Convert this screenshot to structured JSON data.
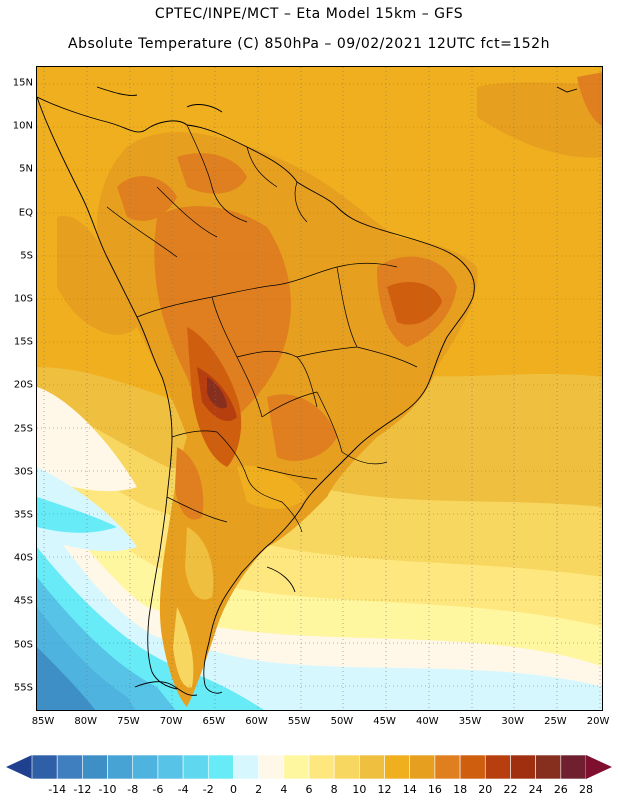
{
  "header": {
    "line1": "CPTEC/INPE/MCT –   Eta Model 15km – GFS",
    "line2": "Absolute Temperature (C) 850hPa – 09/02/2021 12UTC fct=152h"
  },
  "map": {
    "lat_labels": [
      "15N",
      "10N",
      "5N",
      "EQ",
      "5S",
      "10S",
      "15S",
      "20S",
      "25S",
      "30S",
      "35S",
      "40S",
      "45S",
      "50S",
      "55S"
    ],
    "lon_labels": [
      "85W",
      "80W",
      "75W",
      "70W",
      "65W",
      "60W",
      "55W",
      "50W",
      "45W",
      "40W",
      "35W",
      "30W",
      "25W",
      "20W"
    ]
  },
  "colorbar": {
    "labels": [
      "-14",
      "-12",
      "-10",
      "-8",
      "-6",
      "-4",
      "-2",
      "0",
      "2",
      "4",
      "6",
      "8",
      "10",
      "12",
      "14",
      "16",
      "18",
      "20",
      "22",
      "24",
      "26",
      "28"
    ],
    "colors": [
      "#1f3f8f",
      "#2f5fa7",
      "#3f7fbf",
      "#3f8fc7",
      "#47a3d3",
      "#4fb3df",
      "#57c3e7",
      "#5fd7ef",
      "#67ebf7",
      "#d7f7ff",
      "#fff7e7",
      "#fff79f",
      "#ffe77f",
      "#f7d75f",
      "#efbf3f",
      "#efaf1f",
      "#e79f1f",
      "#df7f1f",
      "#cf5f0f",
      "#b73f0f",
      "#9f2f0f",
      "#872f1f",
      "#6f1f2f",
      "#7f0f2f"
    ],
    "low_arrow_color": "#1f3f8f",
    "high_arrow_color": "#7f0f2f"
  }
}
